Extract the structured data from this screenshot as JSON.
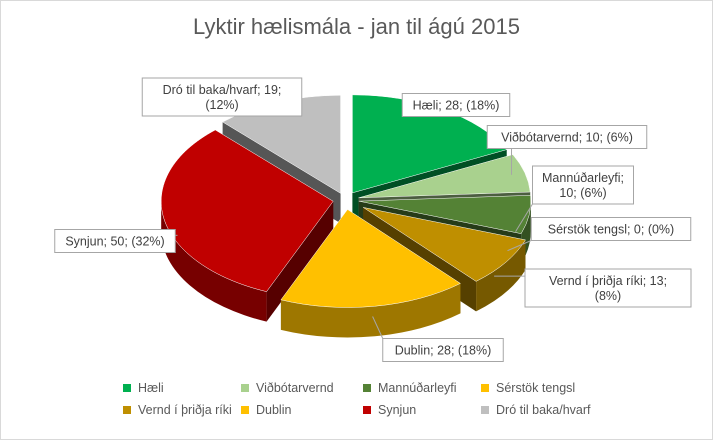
{
  "chart_data": {
    "type": "pie",
    "title": "Lyktir hælismála - jan til ágú 2015",
    "slices": [
      {
        "name": "Hæli",
        "value": 28,
        "percent": "18%",
        "color": "#00b050",
        "label": [
          "Hæli; 28; (18%)"
        ]
      },
      {
        "name": "Viðbótarvernd",
        "value": 10,
        "percent": "6%",
        "color": "#a9d18e",
        "label": [
          "Viðbótarvernd; 10; (6%)"
        ]
      },
      {
        "name": "Mannúðarleyfi",
        "value": 10,
        "percent": "6%",
        "color": "#548235",
        "label": [
          "Mannúðarleyfi;",
          "10; (6%)"
        ]
      },
      {
        "name": "Sérstök tengsl",
        "value": 0,
        "percent": "0%",
        "color": "#ffc000",
        "label": [
          "Sérstök tengsl; 0; (0%)"
        ]
      },
      {
        "name": "Vernd í þriðja ríki",
        "value": 13,
        "percent": "8%",
        "color": "#bf8f00",
        "label": [
          "Vernd í þriðja ríki; 13;",
          "(8%)"
        ]
      },
      {
        "name": "Dublin",
        "value": 28,
        "percent": "18%",
        "color": "#ffc000",
        "label": [
          "Dublin; 28; (18%)"
        ]
      },
      {
        "name": "Synjun",
        "value": 50,
        "percent": "32%",
        "color": "#c00000",
        "label": [
          "Synjun; 50; (32%)"
        ]
      },
      {
        "name": "Dró til baka/hvarf",
        "value": 19,
        "percent": "12%",
        "color": "#bfbfbf",
        "label": [
          "Dró til baka/hvarf; 19;",
          "(12%)"
        ]
      }
    ],
    "legend_position": "bottom"
  }
}
